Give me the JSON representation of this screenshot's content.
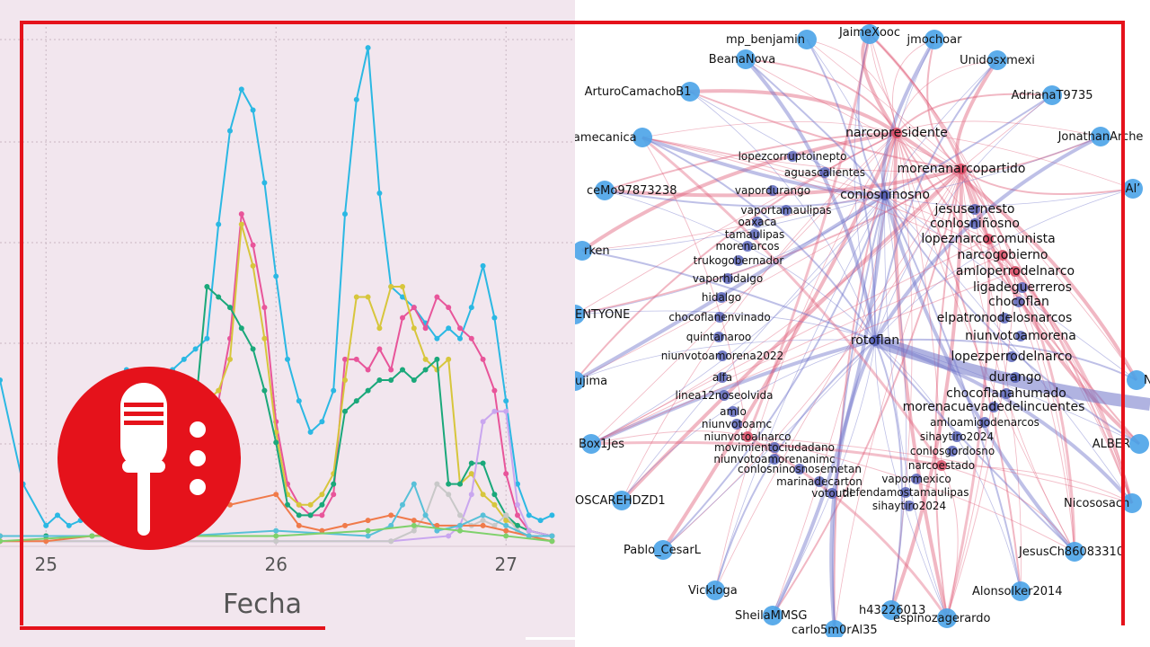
{
  "colors": {
    "frame": "#e5121b",
    "chart_bg": "#f2e6ee",
    "logo_bg": "#e5121b",
    "logo_fg": "#ffffff",
    "node_light": "#4aa3e8",
    "node_dark": "#4f5bb5",
    "node_red": "#d9455f",
    "edge_red": "#e0607a",
    "edge_blue": "#6f74c9"
  },
  "logo": {
    "icon": "microphone-icon"
  },
  "chart_data": [
    {
      "type": "line",
      "title": "",
      "xlabel": "Fecha",
      "ylabel": "",
      "x_ticks": [
        "25",
        "26",
        "27"
      ],
      "xlim": [
        24.8,
        27.3
      ],
      "ylim": [
        0,
        100
      ],
      "grid": true,
      "legend": "none",
      "series": [
        {
          "color": "#2bb8e3",
          "x": [
            24.8,
            24.9,
            25.0,
            25.05,
            25.1,
            25.15,
            25.2,
            25.25,
            25.3,
            25.35,
            25.4,
            25.45,
            25.5,
            25.55,
            25.6,
            25.65,
            25.7,
            25.75,
            25.8,
            25.85,
            25.9,
            25.95,
            26.0,
            26.05,
            26.1,
            26.15,
            26.2,
            26.25,
            26.3,
            26.35,
            26.4,
            26.45,
            26.5,
            26.55,
            26.6,
            26.65,
            26.7,
            26.75,
            26.8,
            26.85,
            26.9,
            26.95,
            27.0,
            27.05,
            27.1,
            27.15,
            27.2
          ],
          "values": [
            32,
            12,
            4,
            6,
            4,
            5,
            12,
            22,
            32,
            34,
            30,
            26,
            28,
            34,
            36,
            38,
            40,
            62,
            80,
            88,
            84,
            70,
            52,
            36,
            28,
            22,
            24,
            30,
            64,
            86,
            96,
            68,
            50,
            48,
            46,
            43,
            40,
            42,
            40,
            46,
            54,
            44,
            28,
            12,
            6,
            5,
            6
          ]
        },
        {
          "color": "#e8559a",
          "x": [
            24.8,
            25.0,
            25.2,
            25.4,
            25.6,
            25.7,
            25.75,
            25.8,
            25.85,
            25.9,
            25.95,
            26.0,
            26.05,
            26.1,
            26.15,
            26.2,
            26.25,
            26.3,
            26.35,
            26.4,
            26.45,
            26.5,
            26.55,
            26.6,
            26.65,
            26.7,
            26.75,
            26.8,
            26.85,
            26.9,
            26.95,
            27.0,
            27.05,
            27.1,
            27.2
          ],
          "values": [
            2,
            2,
            2,
            2,
            3,
            18,
            28,
            40,
            64,
            58,
            46,
            24,
            12,
            8,
            6,
            6,
            10,
            36,
            36,
            34,
            38,
            34,
            44,
            46,
            42,
            48,
            46,
            42,
            40,
            36,
            30,
            14,
            6,
            3,
            2
          ]
        },
        {
          "color": "#d7c63c",
          "x": [
            24.8,
            25.0,
            25.2,
            25.4,
            25.6,
            25.7,
            25.75,
            25.8,
            25.85,
            25.9,
            25.95,
            26.0,
            26.05,
            26.1,
            26.15,
            26.2,
            26.25,
            26.3,
            26.35,
            26.4,
            26.45,
            26.5,
            26.55,
            26.6,
            26.65,
            26.7,
            26.75,
            26.8,
            26.85,
            26.9,
            26.95,
            27.0,
            27.05,
            27.1,
            27.2
          ],
          "values": [
            2,
            2,
            2,
            2,
            3,
            28,
            30,
            36,
            62,
            54,
            40,
            22,
            10,
            8,
            8,
            10,
            14,
            32,
            48,
            48,
            42,
            50,
            50,
            42,
            36,
            34,
            36,
            12,
            14,
            10,
            8,
            5,
            4,
            3,
            2
          ]
        },
        {
          "color": "#1aa87a",
          "x": [
            24.8,
            25.0,
            25.2,
            25.4,
            25.6,
            25.7,
            25.75,
            25.8,
            25.85,
            25.9,
            25.95,
            26.0,
            26.05,
            26.1,
            26.15,
            26.2,
            26.25,
            26.3,
            26.35,
            26.4,
            26.45,
            26.5,
            26.55,
            26.6,
            26.65,
            26.7,
            26.75,
            26.8,
            26.85,
            26.9,
            26.95,
            27.0,
            27.05,
            27.1,
            27.2
          ],
          "values": [
            2,
            2,
            2,
            2,
            3,
            50,
            48,
            46,
            42,
            38,
            30,
            20,
            8,
            6,
            6,
            8,
            12,
            26,
            28,
            30,
            32,
            32,
            34,
            32,
            34,
            36,
            12,
            12,
            16,
            16,
            10,
            6,
            4,
            3,
            2
          ]
        },
        {
          "color": "#c9a6ef",
          "x": [
            24.8,
            25.5,
            26.0,
            26.5,
            26.75,
            26.8,
            26.85,
            26.9,
            26.95,
            27.0,
            27.05,
            27.1,
            27.2
          ],
          "values": [
            1,
            1,
            1,
            1,
            2,
            4,
            10,
            24,
            26,
            26,
            8,
            3,
            2
          ]
        },
        {
          "color": "#c8c8c8",
          "x": [
            24.8,
            25.5,
            26.0,
            26.5,
            26.6,
            26.65,
            26.7,
            26.75,
            26.8,
            26.85,
            26.9,
            26.95,
            27.0,
            27.05,
            27.1,
            27.2
          ],
          "values": [
            1,
            1,
            1,
            1,
            3,
            6,
            12,
            10,
            6,
            4,
            5,
            4,
            6,
            3,
            2,
            1
          ]
        },
        {
          "color": "#f07a4a",
          "x": [
            24.8,
            25.0,
            25.2,
            25.4,
            25.6,
            25.8,
            26.0,
            26.1,
            26.2,
            26.3,
            26.4,
            26.5,
            26.6,
            26.7,
            26.8,
            26.9,
            27.0,
            27.1,
            27.2
          ],
          "values": [
            1,
            1,
            2,
            3,
            6,
            8,
            10,
            4,
            3,
            4,
            5,
            6,
            5,
            4,
            4,
            4,
            3,
            2,
            1
          ]
        },
        {
          "color": "#58c0d8",
          "x": [
            24.8,
            25.2,
            25.6,
            26.0,
            26.4,
            26.5,
            26.55,
            26.6,
            26.65,
            26.7,
            26.8,
            26.9,
            27.0,
            27.1,
            27.2
          ],
          "values": [
            2,
            2,
            2,
            3,
            2,
            4,
            8,
            12,
            6,
            3,
            4,
            6,
            4,
            2,
            2
          ]
        },
        {
          "color": "#7fd16b",
          "x": [
            24.8,
            25.2,
            25.6,
            26.0,
            26.4,
            26.6,
            26.8,
            27.0,
            27.2
          ],
          "values": [
            1,
            2,
            2,
            2,
            3,
            4,
            3,
            2,
            1
          ]
        }
      ]
    },
    {
      "type": "network",
      "nodes": [
        {
          "id": "JaimeXooc",
          "label": "JaimeXooc",
          "kind": "light"
        },
        {
          "id": "mp_benjamin",
          "label": "mp_benjamin",
          "kind": "light"
        },
        {
          "id": "jmochoar",
          "label": "jmochoar",
          "kind": "light"
        },
        {
          "id": "BeanaNova",
          "label": "BeanaNova",
          "kind": "light"
        },
        {
          "id": "Unidosxmexi",
          "label": "Unidosxmexi",
          "kind": "light"
        },
        {
          "id": "ArturoCamachoB1",
          "label": "ArturoCamachoB1",
          "kind": "light"
        },
        {
          "id": "AdrianaT9735",
          "label": "AdrianaT9735",
          "kind": "light"
        },
        {
          "id": "sandramecanica",
          "label": "sandramecanica",
          "kind": "light"
        },
        {
          "id": "JonathanArche",
          "label": "JonathanArche",
          "kind": "light"
        },
        {
          "id": "narcopresidente",
          "label": "narcopresidente",
          "kind": "red"
        },
        {
          "id": "lopezcorruptoinepto",
          "label": "lopezcorruptoinepto",
          "kind": "dark"
        },
        {
          "id": "aguascalientes",
          "label": "aguascalientes",
          "kind": "dark"
        },
        {
          "id": "morenanarcopartido",
          "label": "morenanarcopartido",
          "kind": "red"
        },
        {
          "id": "ceMo97873238",
          "label": "ceMo97873238",
          "kind": "light"
        },
        {
          "id": "vapordurango",
          "label": "vapordurango",
          "kind": "dark"
        },
        {
          "id": "conlosninosno",
          "label": "conlosninosno",
          "kind": "dark"
        },
        {
          "id": "Alv",
          "label": "Al’",
          "kind": "light"
        },
        {
          "id": "vaportamaulipas",
          "label": "vaportamaulipas",
          "kind": "dark"
        },
        {
          "id": "jesusernesto",
          "label": "jesusernesto",
          "kind": "dark"
        },
        {
          "id": "oaxaca",
          "label": "oaxaca",
          "kind": "dark"
        },
        {
          "id": "conlosninosno2",
          "label": "conlosniñosno",
          "kind": "dark"
        },
        {
          "id": "tamaulipas",
          "label": "tamaulipas",
          "kind": "dark"
        },
        {
          "id": "lopeznarcocomunista",
          "label": "lopeznarcocomunista",
          "kind": "red"
        },
        {
          "id": "rken",
          "label": "rken",
          "kind": "light"
        },
        {
          "id": "morenarcos",
          "label": "morenarcos",
          "kind": "dark"
        },
        {
          "id": "narcogobierno",
          "label": "narcogobierno",
          "kind": "red"
        },
        {
          "id": "trukogobernador",
          "label": "trukogobernador",
          "kind": "dark"
        },
        {
          "id": "amloperrodelnarco",
          "label": "amloperrodelnarco",
          "kind": "red"
        },
        {
          "id": "vaporhidalgo",
          "label": "vaporhidalgo",
          "kind": "dark"
        },
        {
          "id": "ligadeguerreros",
          "label": "ligadeguerreros",
          "kind": "dark"
        },
        {
          "id": "hidalgo",
          "label": "hidalgo",
          "kind": "dark"
        },
        {
          "id": "chocoflan",
          "label": "chocoflan",
          "kind": "dark"
        },
        {
          "id": "ENTYONE",
          "label": "ENTYONE",
          "kind": "light"
        },
        {
          "id": "chocoflanenvinado",
          "label": "chocoflanenvinado",
          "kind": "dark"
        },
        {
          "id": "elpatronodelosnarcos",
          "label": "elpatronodelosnarcos",
          "kind": "dark"
        },
        {
          "id": "quintanaroo",
          "label": "quintanaroo",
          "kind": "dark"
        },
        {
          "id": "rotoflan",
          "label": "rotoflan",
          "kind": "dark"
        },
        {
          "id": "niunvotoamorena",
          "label": "niunvotoamorena",
          "kind": "dark"
        },
        {
          "id": "niunvotoamorena2022",
          "label": "niunvotoamorena2022",
          "kind": "dark"
        },
        {
          "id": "lopezperrodelnarco",
          "label": "lopezperrodelnarco",
          "kind": "dark"
        },
        {
          "id": "ujima",
          "label": "ujima",
          "kind": "light"
        },
        {
          "id": "alfa",
          "label": "alfa",
          "kind": "dark"
        },
        {
          "id": "durango",
          "label": "durango",
          "kind": "dark"
        },
        {
          "id": "Ne",
          "label": "Ne",
          "kind": "light"
        },
        {
          "id": "linea12noseolvida",
          "label": "linea12noseolvida",
          "kind": "dark"
        },
        {
          "id": "chocoflanahumado",
          "label": "chocoflanahumado",
          "kind": "dark"
        },
        {
          "id": "amlo",
          "label": "amlo",
          "kind": "dark"
        },
        {
          "id": "morenacuevadedelincuentes",
          "label": "morenacuevadedelincuentes",
          "kind": "dark"
        },
        {
          "id": "niunvotoamc",
          "label": "niunvotoamc",
          "kind": "dark"
        },
        {
          "id": "amloamigodenarcos",
          "label": "amloamigodenarcos",
          "kind": "dark"
        },
        {
          "id": "niunvotoalnarco",
          "label": "niunvotoalnarco",
          "kind": "red"
        },
        {
          "id": "sihaytiro2024a",
          "label": "sihaytiro2024",
          "kind": "dark"
        },
        {
          "id": "Box1Jes",
          "label": "Box1Jes",
          "kind": "light"
        },
        {
          "id": "ALBER",
          "label": "ALBER",
          "kind": "light"
        },
        {
          "id": "movimientociudadano",
          "label": "movimientociudadano",
          "kind": "dark"
        },
        {
          "id": "conlosgordosno",
          "label": "conlosgordosno",
          "kind": "dark"
        },
        {
          "id": "niunvotoamorenanimc",
          "label": "niunvotoamorenanimc",
          "kind": "dark"
        },
        {
          "id": "narcoestado",
          "label": "narcoestado",
          "kind": "red"
        },
        {
          "id": "conlosninosnosemetan",
          "label": "conlosninosnosemetan",
          "kind": "dark"
        },
        {
          "id": "vapormexico",
          "label": "vapormexico",
          "kind": "dark"
        },
        {
          "id": "marinadecarton",
          "label": "marinadecarton",
          "kind": "dark"
        },
        {
          "id": "defendamostamaulipas",
          "label": "defendamostamaulipas",
          "kind": "dark"
        },
        {
          "id": "votoutil",
          "label": "votoutil",
          "kind": "dark"
        },
        {
          "id": "sihaytiro2024b",
          "label": "sihaytiro2024",
          "kind": "dark"
        },
        {
          "id": "OSCAREHDZD1",
          "label": "OSCAREHDZD1",
          "kind": "light"
        },
        {
          "id": "Nicososach",
          "label": "Nicososach",
          "kind": "light"
        },
        {
          "id": "Pablo_CesarL",
          "label": "Pablo_CesarL",
          "kind": "light"
        },
        {
          "id": "JesusCh86083310",
          "label": "JesusCh86083310",
          "kind": "light"
        },
        {
          "id": "Vickloga",
          "label": "Vickloga",
          "kind": "light"
        },
        {
          "id": "Alonsolker2014",
          "label": "Alonsolker2014",
          "kind": "light"
        },
        {
          "id": "h43226013",
          "label": "h43226013",
          "kind": "light"
        },
        {
          "id": "SheilaMMSG",
          "label": "SheilaMMSG",
          "kind": "light"
        },
        {
          "id": "espinozagerardo",
          "label": "espinozagerardo",
          "kind": "light"
        },
        {
          "id": "carlo5m0rAl35",
          "label": "carlo5m0rAl35",
          "kind": "light"
        }
      ]
    }
  ]
}
